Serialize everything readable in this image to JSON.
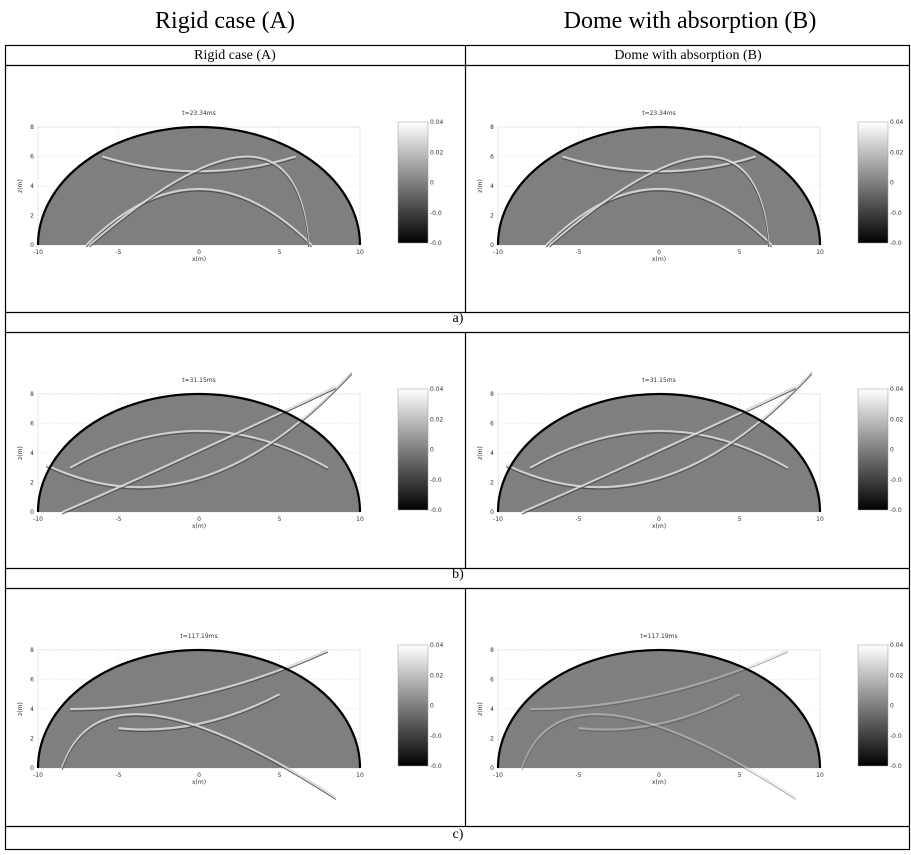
{
  "header": {
    "left": "Rigid case (A)",
    "right": "Dome with absorption (B)"
  },
  "table": {
    "columns": [
      "Rigid case (A)",
      "Dome with absorption (B)"
    ],
    "rows": [
      {
        "titles": [
          "t=23.34ms",
          "t=23.34ms"
        ],
        "caption": "a)"
      },
      {
        "titles": [
          "t=31.15ms",
          "t=31.15ms"
        ],
        "caption": "b)"
      },
      {
        "titles": [
          "t=117.19ms",
          "t=117.19ms"
        ],
        "caption": "c)"
      }
    ]
  },
  "plot_axes": {
    "xticks": [
      -10,
      -5,
      0,
      5,
      10
    ],
    "yticks": [
      0,
      2,
      4,
      6,
      8
    ],
    "xlabel": "x(m)",
    "ylabel": "z(m)",
    "colorbar_labels": [
      "0.04",
      "0.02",
      "0",
      "-0.0",
      "-0.0"
    ]
  }
}
